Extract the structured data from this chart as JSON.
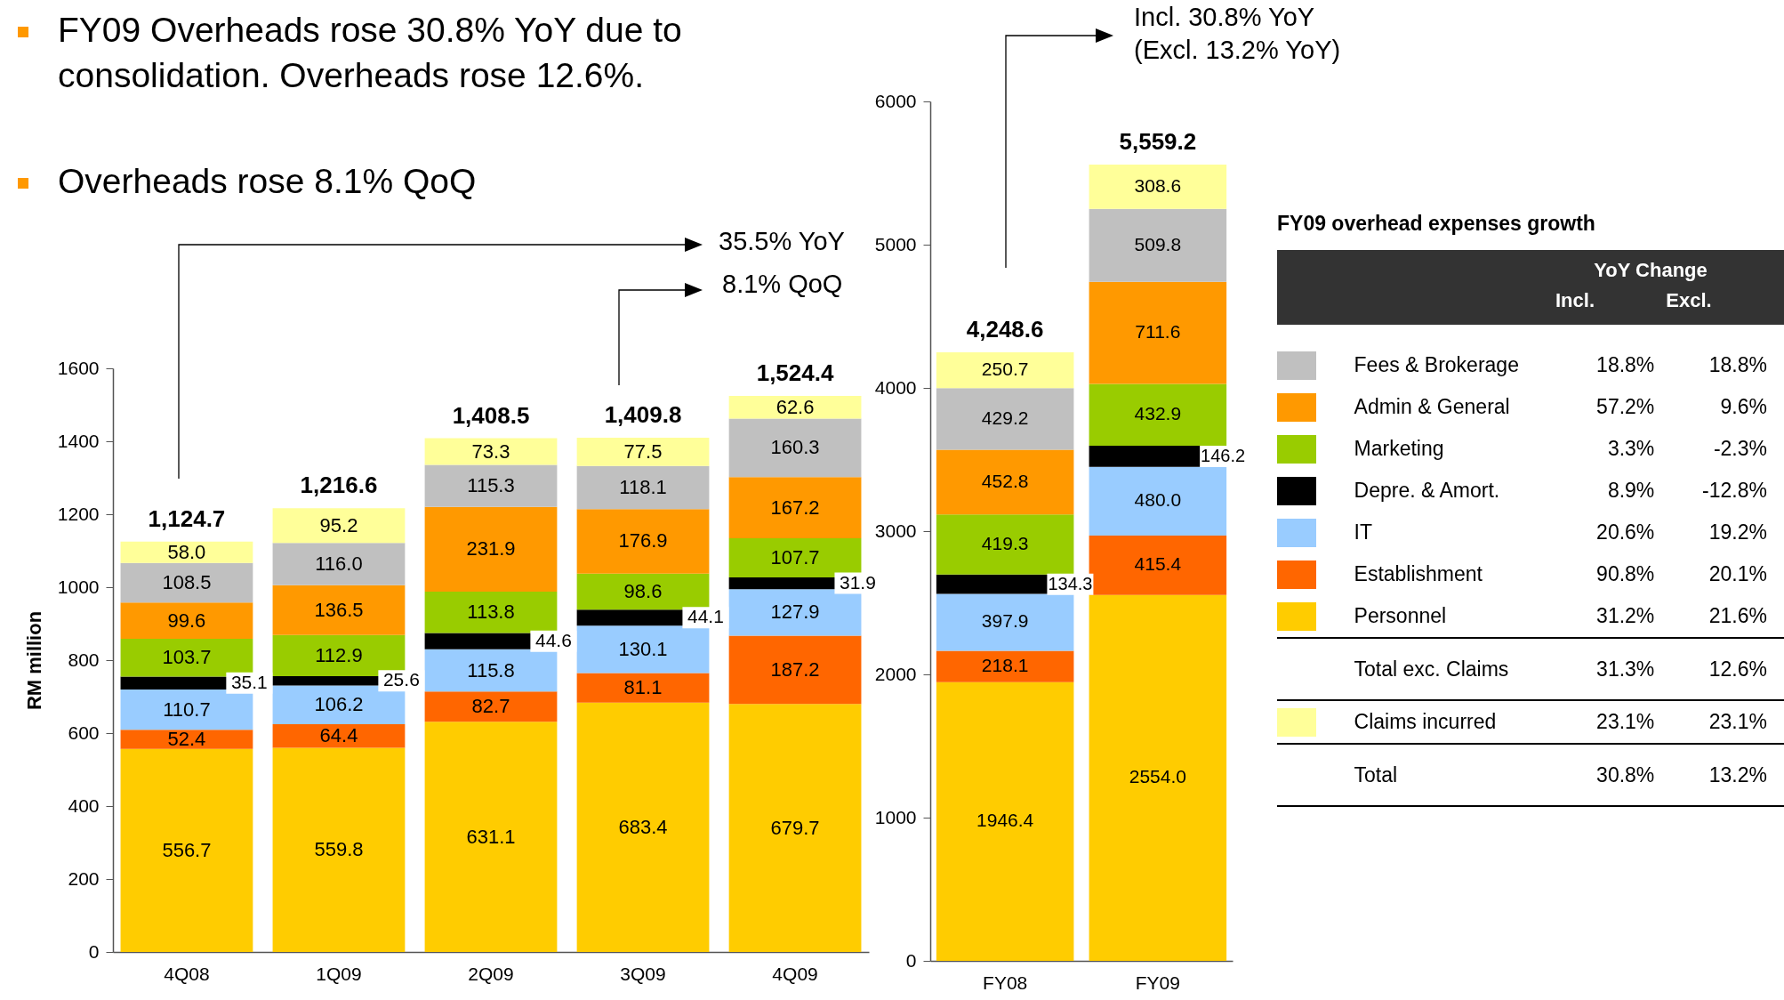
{
  "chart_data": [
    {
      "type": "bar",
      "stacked": true,
      "ylabel": "RM million",
      "ylim": [
        0,
        1600
      ],
      "yticks": [
        0,
        200,
        400,
        600,
        800,
        1000,
        1200,
        1400,
        1600
      ],
      "categories": [
        "4Q08",
        "1Q09",
        "2Q09",
        "3Q09",
        "4Q09"
      ],
      "series": [
        {
          "color": "#ffcc00",
          "values": [
            556.7,
            559.8,
            631.1,
            683.4,
            679.7
          ],
          "value_labels": [
            "556.7",
            "559.8",
            "631.1",
            "683.4",
            "679.7"
          ]
        },
        {
          "color": "#ff6600",
          "values": [
            52.4,
            64.4,
            82.7,
            81.1,
            187.2
          ],
          "value_labels": [
            "52.4",
            "64.4",
            "82.7",
            "81.1",
            "187.2"
          ]
        },
        {
          "color": "#99ccff",
          "values": [
            110.7,
            106.2,
            115.8,
            130.1,
            127.9
          ],
          "value_labels": [
            "110.7",
            "106.2",
            "115.8",
            "130.1",
            "127.9"
          ]
        },
        {
          "color": "#000000",
          "values": [
            35.1,
            25.6,
            44.6,
            44.1,
            31.9
          ],
          "value_labels": [
            "35.1",
            "25.6",
            "44.6",
            "44.1",
            "31.9"
          ]
        },
        {
          "color": "#99cc00",
          "values": [
            103.7,
            112.9,
            113.8,
            98.6,
            107.7
          ],
          "value_labels": [
            "103.7",
            "112.9",
            "113.8",
            "98.6",
            "107.7"
          ]
        },
        {
          "color": "#ff9900",
          "values": [
            99.6,
            136.5,
            231.9,
            176.9,
            167.2
          ],
          "value_labels": [
            "99.6",
            "136.5",
            "231.9",
            "176.9",
            "167.2"
          ]
        },
        {
          "color": "#c0c0c0",
          "values": [
            108.5,
            116.0,
            115.3,
            118.1,
            160.3
          ],
          "value_labels": [
            "108.5",
            "116.0",
            "115.3",
            "118.1",
            "160.3"
          ]
        },
        {
          "color": "#ffff99",
          "values": [
            58.0,
            95.2,
            73.3,
            77.5,
            62.6
          ],
          "value_labels": [
            "58.0",
            "95.2",
            "73.3",
            "77.5",
            "62.6"
          ]
        }
      ],
      "totals": [
        "1,124.7",
        "1,216.6",
        "1,408.5",
        "1,409.8",
        "1,524.4"
      ],
      "annotations": [
        "FY09 Overheads rose 30.8% YoY due to consolidation. Overheads rose 12.6%.",
        "Overheads rose 8.1% QoQ",
        "35.5% YoY",
        "8.1% QoQ"
      ]
    },
    {
      "type": "bar",
      "stacked": true,
      "ylim": [
        0,
        6000
      ],
      "yticks": [
        0,
        1000,
        2000,
        3000,
        4000,
        5000,
        6000
      ],
      "categories": [
        "FY08",
        "FY09"
      ],
      "series": [
        {
          "color": "#ffcc00",
          "values": [
            1946.4,
            2554.0
          ],
          "value_labels": [
            "1946.4",
            "2554.0"
          ]
        },
        {
          "color": "#ff6600",
          "values": [
            218.1,
            415.4
          ],
          "value_labels": [
            "218.1",
            "415.4"
          ]
        },
        {
          "color": "#99ccff",
          "values": [
            397.9,
            480.0
          ],
          "value_labels": [
            "397.9",
            "480.0"
          ]
        },
        {
          "color": "#000000",
          "values": [
            134.3,
            146.2
          ],
          "value_labels": [
            "134.3",
            "146.2"
          ]
        },
        {
          "color": "#99cc00",
          "values": [
            419.3,
            432.9
          ],
          "value_labels": [
            "419.3",
            "432.9"
          ]
        },
        {
          "color": "#ff9900",
          "values": [
            452.8,
            711.6
          ],
          "value_labels": [
            "452.8",
            "711.6"
          ]
        },
        {
          "color": "#c0c0c0",
          "values": [
            429.2,
            509.8
          ],
          "value_labels": [
            "429.2",
            "509.8"
          ]
        },
        {
          "color": "#ffff99",
          "values": [
            250.7,
            308.6
          ],
          "value_labels": [
            "250.7",
            "308.6"
          ]
        }
      ],
      "annotations": [
        "Incl. 30.8% YoY",
        "(Excl. 13.2% YoY)",
        {
          "text": "4,248.6",
          "x": "FY08",
          "y": 4248.7
        },
        {
          "text": "5,559.2",
          "x": "FY09",
          "y": 5558.5
        }
      ]
    },
    {
      "type": "other",
      "title": "FY09 overhead expenses growth",
      "legend_title": "YoY Change",
      "categories": [
        "Fees & Brokerage",
        "Admin & General",
        "Marketing",
        "Depre. & Amort.",
        "IT",
        "Establishment",
        "Personnel",
        "Total exc. Claims",
        "Claims incurred",
        "Total"
      ],
      "colors": [
        "#c0c0c0",
        "#ff9900",
        "#99cc00",
        "#000000",
        "#99ccff",
        "#ff6600",
        "#ffcc00",
        null,
        "#ffff99",
        null
      ],
      "series": [
        {
          "name": "Incl.",
          "values": [
            18.8,
            57.2,
            3.3,
            8.9,
            20.6,
            90.8,
            31.2,
            31.3,
            23.1,
            30.8
          ],
          "value_labels": [
            "18.8%",
            "57.2%",
            "3.3%",
            "8.9%",
            "20.6%",
            "90.8%",
            "31.2%",
            "31.3%",
            "23.1%",
            "30.8%"
          ]
        },
        {
          "name": "Excl.",
          "values": [
            18.8,
            9.6,
            -2.3,
            -12.8,
            19.2,
            20.1,
            21.6,
            12.6,
            23.1,
            13.2
          ],
          "value_labels": [
            "18.8%",
            "9.6%",
            "-2.3%",
            "-12.8%",
            "19.2%",
            "20.1%",
            "21.6%",
            "12.6%",
            "23.1%",
            "13.2%"
          ]
        }
      ]
    }
  ]
}
